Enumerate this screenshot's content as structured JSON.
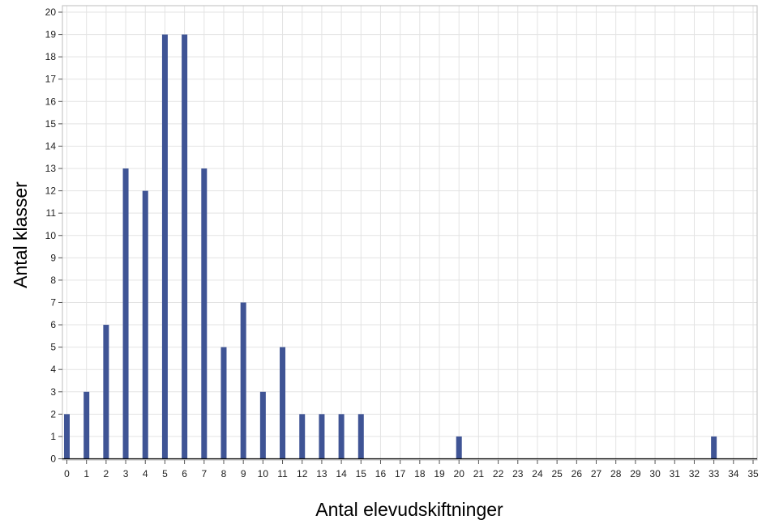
{
  "chart_data": {
    "type": "bar",
    "title": "",
    "xlabel": "Antal elevudskiftninger",
    "ylabel": "Antal klasser",
    "x": [
      0,
      1,
      2,
      3,
      4,
      5,
      6,
      7,
      8,
      9,
      10,
      11,
      12,
      13,
      14,
      15,
      20,
      33
    ],
    "values": [
      2,
      3,
      6,
      13,
      12,
      19,
      19,
      13,
      5,
      7,
      3,
      5,
      2,
      2,
      2,
      2,
      1,
      1
    ],
    "xlim": [
      0,
      35
    ],
    "ylim": [
      0,
      20
    ],
    "x_ticks": [
      "0",
      "1",
      "2",
      "3",
      "4",
      "5",
      "6",
      "7",
      "8",
      "9",
      "10",
      "11",
      "12",
      "13",
      "14",
      "15",
      "16",
      "17",
      "18",
      "19",
      "20",
      "21",
      "22",
      "23",
      "24",
      "25",
      "26",
      "27",
      "28",
      "29",
      "30",
      "31",
      "32",
      "33",
      "34",
      "35"
    ],
    "y_ticks": [
      "0",
      "1",
      "2",
      "3",
      "4",
      "5",
      "6",
      "7",
      "8",
      "9",
      "10",
      "11",
      "12",
      "13",
      "14",
      "15",
      "16",
      "17",
      "18",
      "19",
      "20"
    ],
    "grid": true,
    "legend": "none",
    "colors": {
      "bar": "#3f5495",
      "grid": "#e3e3e3",
      "frame": "#bdbdbd",
      "baseline": "#000000"
    }
  }
}
